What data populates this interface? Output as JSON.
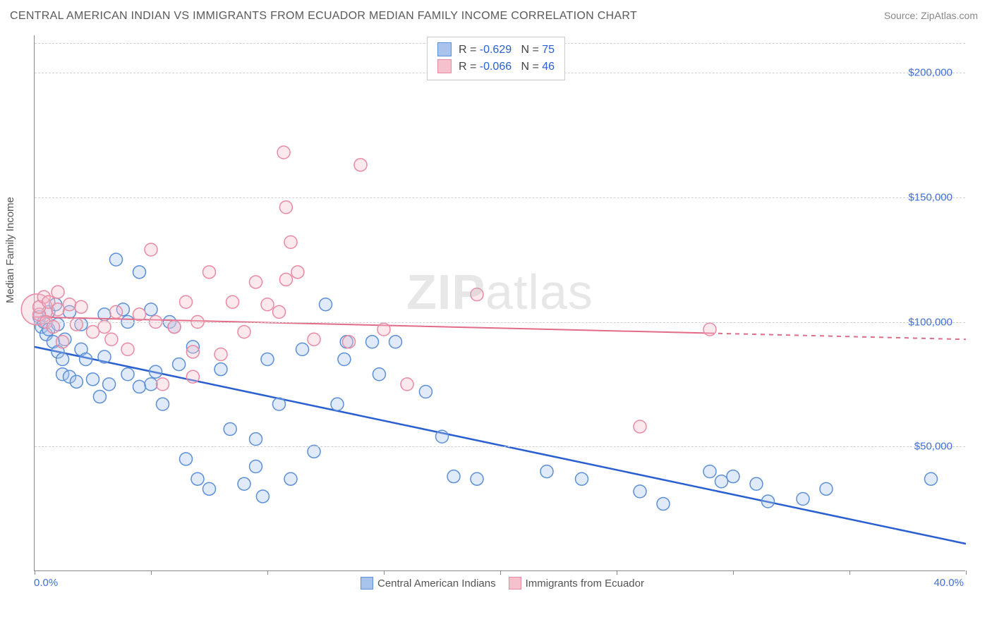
{
  "title": "CENTRAL AMERICAN INDIAN VS IMMIGRANTS FROM ECUADOR MEDIAN FAMILY INCOME CORRELATION CHART",
  "source_label": "Source:",
  "source_value": "ZipAtlas.com",
  "ylabel": "Median Family Income",
  "watermark": "ZIPatlas",
  "chart": {
    "type": "scatter",
    "xlim": [
      0,
      40
    ],
    "ylim": [
      0,
      215000
    ],
    "x_tick_positions": [
      0,
      5,
      10,
      15,
      20,
      25,
      30,
      35,
      40
    ],
    "x_axis_label_left": "0.0%",
    "x_axis_label_right": "40.0%",
    "y_ticks": [
      {
        "value": 50000,
        "label": "$50,000"
      },
      {
        "value": 100000,
        "label": "$100,000"
      },
      {
        "value": 150000,
        "label": "$150,000"
      },
      {
        "value": 200000,
        "label": "$200,000"
      }
    ],
    "grid_color": "#d0d0d0",
    "background_color": "#ffffff",
    "marker_radius": 9,
    "marker_radius_big": 22,
    "series": [
      {
        "key": "blue",
        "name": "Central American Indians",
        "fill": "#a8c4ec",
        "stroke": "#5b8fd6",
        "line_color": "#2a5fd0",
        "R": -0.629,
        "N": 75,
        "trend": {
          "x1": 0,
          "y1": 90000,
          "x2": 40,
          "y2": 11000,
          "dash_after_x": null
        },
        "points": [
          [
            0.2,
            102000
          ],
          [
            0.3,
            98000
          ],
          [
            0.4,
            100000
          ],
          [
            0.5,
            95000
          ],
          [
            0.6,
            97000
          ],
          [
            0.6,
            104000
          ],
          [
            0.8,
            92000
          ],
          [
            0.9,
            107000
          ],
          [
            1.0,
            88000
          ],
          [
            1.0,
            99000
          ],
          [
            1.2,
            79000
          ],
          [
            1.2,
            85000
          ],
          [
            1.3,
            93000
          ],
          [
            1.5,
            78000
          ],
          [
            1.5,
            104000
          ],
          [
            1.8,
            76000
          ],
          [
            2.0,
            89000
          ],
          [
            2.0,
            99000
          ],
          [
            2.2,
            85000
          ],
          [
            2.5,
            77000
          ],
          [
            2.8,
            70000
          ],
          [
            3.0,
            103000
          ],
          [
            3.0,
            86000
          ],
          [
            3.2,
            75000
          ],
          [
            3.5,
            125000
          ],
          [
            3.8,
            105000
          ],
          [
            4.0,
            79000
          ],
          [
            4.0,
            100000
          ],
          [
            4.5,
            74000
          ],
          [
            4.5,
            120000
          ],
          [
            5.0,
            75000
          ],
          [
            5.0,
            105000
          ],
          [
            5.2,
            80000
          ],
          [
            5.5,
            67000
          ],
          [
            5.8,
            100000
          ],
          [
            6.0,
            98000
          ],
          [
            6.2,
            83000
          ],
          [
            6.5,
            45000
          ],
          [
            6.8,
            90000
          ],
          [
            7.0,
            37000
          ],
          [
            7.5,
            33000
          ],
          [
            8.0,
            81000
          ],
          [
            8.4,
            57000
          ],
          [
            9.0,
            35000
          ],
          [
            9.5,
            42000
          ],
          [
            9.5,
            53000
          ],
          [
            9.8,
            30000
          ],
          [
            10.0,
            85000
          ],
          [
            10.5,
            67000
          ],
          [
            11.0,
            37000
          ],
          [
            11.5,
            89000
          ],
          [
            12.0,
            48000
          ],
          [
            12.5,
            107000
          ],
          [
            13.0,
            67000
          ],
          [
            13.3,
            85000
          ],
          [
            13.4,
            92000
          ],
          [
            14.5,
            92000
          ],
          [
            14.8,
            79000
          ],
          [
            15.5,
            92000
          ],
          [
            16.8,
            72000
          ],
          [
            17.5,
            54000
          ],
          [
            18.0,
            38000
          ],
          [
            19.0,
            37000
          ],
          [
            22.0,
            40000
          ],
          [
            23.5,
            37000
          ],
          [
            26.0,
            32000
          ],
          [
            27.0,
            27000
          ],
          [
            29.0,
            40000
          ],
          [
            29.5,
            36000
          ],
          [
            30.0,
            38000
          ],
          [
            31.0,
            35000
          ],
          [
            31.5,
            28000
          ],
          [
            33.0,
            29000
          ],
          [
            34.0,
            33000
          ],
          [
            38.5,
            37000
          ]
        ]
      },
      {
        "key": "pink",
        "name": "Immigrants from Ecuador",
        "fill": "#f4c1cd",
        "stroke": "#e98aa2",
        "line_color": "#e26b88",
        "R": -0.066,
        "N": 46,
        "trend": {
          "x1": 0,
          "y1": 102000,
          "x2": 40,
          "y2": 93000,
          "dash_after_x": 29
        },
        "points": [
          [
            0.2,
            103000
          ],
          [
            0.2,
            106000
          ],
          [
            0.4,
            110000
          ],
          [
            0.5,
            100000
          ],
          [
            0.6,
            108000
          ],
          [
            0.8,
            98000
          ],
          [
            1.0,
            105000
          ],
          [
            1.0,
            112000
          ],
          [
            1.2,
            92000
          ],
          [
            1.5,
            107000
          ],
          [
            1.8,
            99000
          ],
          [
            2.0,
            106000
          ],
          [
            2.5,
            96000
          ],
          [
            3.0,
            98000
          ],
          [
            3.3,
            93000
          ],
          [
            3.5,
            104000
          ],
          [
            4.0,
            89000
          ],
          [
            4.5,
            103000
          ],
          [
            5.0,
            129000
          ],
          [
            5.2,
            100000
          ],
          [
            5.5,
            75000
          ],
          [
            6.0,
            98000
          ],
          [
            6.5,
            108000
          ],
          [
            6.8,
            88000
          ],
          [
            6.8,
            78000
          ],
          [
            7.0,
            100000
          ],
          [
            7.5,
            120000
          ],
          [
            8.0,
            87000
          ],
          [
            8.5,
            108000
          ],
          [
            9.0,
            96000
          ],
          [
            9.5,
            116000
          ],
          [
            10.0,
            107000
          ],
          [
            10.5,
            104000
          ],
          [
            10.7,
            168000
          ],
          [
            10.8,
            146000
          ],
          [
            10.8,
            117000
          ],
          [
            11.0,
            132000
          ],
          [
            11.3,
            120000
          ],
          [
            12.0,
            93000
          ],
          [
            13.5,
            92000
          ],
          [
            14.0,
            163000
          ],
          [
            15.0,
            97000
          ],
          [
            16.0,
            75000
          ],
          [
            19.0,
            111000
          ],
          [
            26.0,
            58000
          ],
          [
            29.0,
            97000
          ]
        ],
        "big_point": [
          0.1,
          105000
        ]
      }
    ]
  },
  "stats_labels": {
    "R": "R",
    "N": "N",
    "eq": "="
  },
  "legend_bottom": [
    {
      "series": "blue"
    },
    {
      "series": "pink"
    }
  ]
}
